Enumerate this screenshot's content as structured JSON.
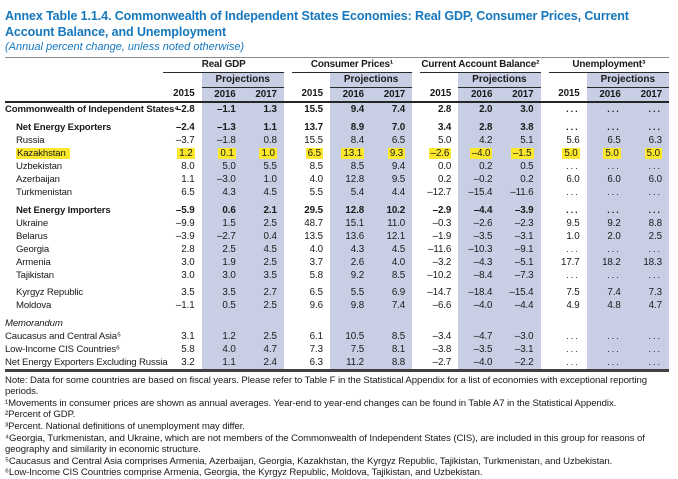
{
  "page": {
    "title": "Annex Table 1.1.4. Commonwealth of Independent States Economies: Real GDP, Consumer Prices, Current Account Balance, and Unemployment",
    "subtitle": "(Annual percent change, unless noted otherwise)"
  },
  "colors": {
    "accent_blue": "#1577bd",
    "band_blue": "#c8cfe4",
    "highlight_yellow": "#fbe82d"
  },
  "table": {
    "group_headers": [
      "Real GDP",
      "Consumer Prices¹",
      "Current Account Balance²",
      "Unemployment³"
    ],
    "projections_label": "Projections",
    "years": [
      "2015",
      "2016",
      "2017"
    ],
    "rows": [
      {
        "label": "Commonwealth of Independent States⁴",
        "bold": true,
        "indent": 0,
        "space_before": 0,
        "highlight": false,
        "values": [
          "–2.8",
          "–1.1",
          "1.3",
          "15.5",
          "9.4",
          "7.4",
          "2.8",
          "2.0",
          "3.0",
          "...",
          "...",
          "..."
        ]
      },
      {
        "label": "Net Energy Exporters",
        "bold": true,
        "indent": 1,
        "space_before": 5,
        "highlight": false,
        "values": [
          "–2.4",
          "–1.3",
          "1.1",
          "13.7",
          "8.9",
          "7.0",
          "3.4",
          "2.8",
          "3.8",
          "...",
          "...",
          "..."
        ]
      },
      {
        "label": "Russia",
        "bold": false,
        "indent": 1,
        "space_before": 0,
        "highlight": false,
        "values": [
          "–3.7",
          "–1.8",
          "0.8",
          "15.5",
          "8.4",
          "6.5",
          "5.0",
          "4.2",
          "5.1",
          "5.6",
          "6.5",
          "6.3"
        ]
      },
      {
        "label": "Kazakhstan",
        "bold": false,
        "indent": 1,
        "space_before": 0,
        "highlight": true,
        "values": [
          "1.2",
          "0.1",
          "1.0",
          "6.5",
          "13.1",
          "9.3",
          "–2.6",
          "–4.0",
          "–1.5",
          "5.0",
          "5.0",
          "5.0"
        ]
      },
      {
        "label": "Uzbekistan",
        "bold": false,
        "indent": 1,
        "space_before": 0,
        "highlight": false,
        "values": [
          "8.0",
          "5.0",
          "5.5",
          "8.5",
          "8.5",
          "9.4",
          "0.0",
          "0.2",
          "0.5",
          "...",
          "...",
          "..."
        ]
      },
      {
        "label": "Azerbaijan",
        "bold": false,
        "indent": 1,
        "space_before": 0,
        "highlight": false,
        "values": [
          "1.1",
          "–3.0",
          "1.0",
          "4.0",
          "12.8",
          "9.5",
          "0.2",
          "–0.2",
          "0.2",
          "6.0",
          "6.0",
          "6.0"
        ]
      },
      {
        "label": "Turkmenistan",
        "bold": false,
        "indent": 1,
        "space_before": 0,
        "highlight": false,
        "values": [
          "6.5",
          "4.3",
          "4.5",
          "5.5",
          "5.4",
          "4.4",
          "–12.7",
          "–15.4",
          "–11.6",
          "...",
          "...",
          "..."
        ]
      },
      {
        "label": "Net Energy Importers",
        "bold": true,
        "indent": 1,
        "space_before": 5,
        "highlight": false,
        "values": [
          "–5.9",
          "0.6",
          "2.1",
          "29.5",
          "12.8",
          "10.2",
          "–2.9",
          "–4.4",
          "–3.9",
          "...",
          "...",
          "..."
        ]
      },
      {
        "label": "Ukraine",
        "bold": false,
        "indent": 1,
        "space_before": 0,
        "highlight": false,
        "values": [
          "–9.9",
          "1.5",
          "2.5",
          "48.7",
          "15.1",
          "11.0",
          "–0.3",
          "–2.6",
          "–2.3",
          "9.5",
          "9.2",
          "8.8"
        ]
      },
      {
        "label": "Belarus",
        "bold": false,
        "indent": 1,
        "space_before": 0,
        "highlight": false,
        "values": [
          "–3.9",
          "–2.7",
          "0.4",
          "13.5",
          "13.6",
          "12.1",
          "–1.9",
          "–3.5",
          "–3.1",
          "1.0",
          "2.0",
          "2.5"
        ]
      },
      {
        "label": "Georgia",
        "bold": false,
        "indent": 1,
        "space_before": 0,
        "highlight": false,
        "values": [
          "2.8",
          "2.5",
          "4.5",
          "4.0",
          "4.3",
          "4.5",
          "–11.6",
          "–10.3",
          "–9.1",
          "...",
          "...",
          "..."
        ]
      },
      {
        "label": "Armenia",
        "bold": false,
        "indent": 1,
        "space_before": 0,
        "highlight": false,
        "values": [
          "3.0",
          "1.9",
          "2.5",
          "3.7",
          "2.6",
          "4.0",
          "–3.2",
          "–4.3",
          "–5.1",
          "17.7",
          "18.2",
          "18.3"
        ]
      },
      {
        "label": "Tajikistan",
        "bold": false,
        "indent": 1,
        "space_before": 0,
        "highlight": false,
        "values": [
          "3.0",
          "3.0",
          "3.5",
          "5.8",
          "9.2",
          "8.5",
          "–10.2",
          "–8.4",
          "–7.3",
          "...",
          "...",
          "..."
        ]
      },
      {
        "label": "Kyrgyz Republic",
        "bold": false,
        "indent": 1,
        "space_before": 4,
        "highlight": false,
        "values": [
          "3.5",
          "3.5",
          "2.7",
          "6.5",
          "5.5",
          "6.9",
          "–14.7",
          "–18.4",
          "–15.4",
          "7.5",
          "7.4",
          "7.3"
        ]
      },
      {
        "label": "Moldova",
        "bold": false,
        "indent": 1,
        "space_before": 0,
        "highlight": false,
        "values": [
          "–1.1",
          "0.5",
          "2.5",
          "9.6",
          "9.8",
          "7.4",
          "–6.6",
          "–4.0",
          "–4.4",
          "4.9",
          "4.8",
          "4.7"
        ]
      },
      {
        "label": "Memorandum",
        "bold": false,
        "italic": true,
        "indent": 0,
        "space_before": 5,
        "highlight": false,
        "values": []
      },
      {
        "label": "Caucasus and Central Asia⁵",
        "bold": false,
        "indent": 0,
        "space_before": 0,
        "highlight": false,
        "values": [
          "3.1",
          "1.2",
          "2.5",
          "6.1",
          "10.5",
          "8.5",
          "–3.4",
          "–4.7",
          "–3.0",
          "...",
          "...",
          "..."
        ]
      },
      {
        "label": "Low-Income CIS Countries⁶",
        "bold": false,
        "indent": 0,
        "space_before": 0,
        "highlight": false,
        "values": [
          "5.8",
          "4.0",
          "4.7",
          "7.3",
          "7.5",
          "8.1",
          "–3.8",
          "–3.5",
          "–3.1",
          "...",
          "...",
          "..."
        ]
      },
      {
        "label": "Net Energy Exporters Excluding Russia",
        "bold": false,
        "indent": 0,
        "space_before": 0,
        "highlight": false,
        "values": [
          "3.2",
          "1.1",
          "2.4",
          "6.3",
          "11.2",
          "8.8",
          "–2.7",
          "–4.0",
          "–2.2",
          "...",
          "...",
          "..."
        ]
      }
    ]
  },
  "footnotes": [
    "Note: Data for some countries are based on fiscal years. Please refer to Table F in the Statistical Appendix for a list of economies with exceptional reporting periods.",
    "¹Movements in consumer prices are shown as annual averages. Year-end to year-end changes can be found in Table A7 in the Statistical Appendix.",
    "²Percent of GDP.",
    "³Percent. National definitions of unemployment may differ.",
    "⁴Georgia, Turkmenistan, and Ukraine, which are not members of the Commonwealth of Independent States (CIS), are included in this group for reasons of geography and similarity in economic structure.",
    "⁵Caucasus and Central Asia comprises Armenia, Azerbaijan, Georgia, Kazakhstan, the Kyrgyz Republic, Tajikistan, Turkmenistan, and Uzbekistan.",
    "⁶Low-Income CIS Countries comprise Armenia, Georgia, the Kyrgyz Republic, Moldova, Tajikistan, and Uzbekistan."
  ]
}
